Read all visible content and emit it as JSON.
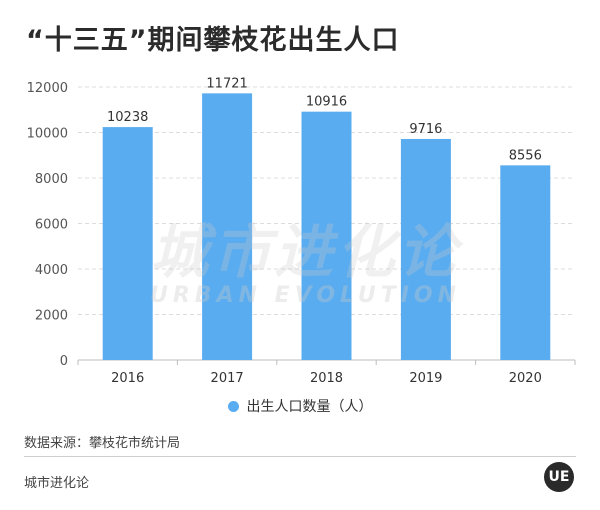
{
  "title": "“十三五”期间攀枝花出生人口",
  "legend_label": "出生人口数量（人）",
  "source": "数据来源：攀枝花市统计局",
  "brand": "城市进化论",
  "logo_text": "UE",
  "watermark": {
    "cn": "城市进化论",
    "en": "URBAN EVOLUTION"
  },
  "colors": {
    "bar": "#5aacf0",
    "grid": "#dcdcdc",
    "axis": "#bdbdbd"
  },
  "chart_data": {
    "type": "bar",
    "title": "“十三五”期间攀枝花出生人口",
    "categories": [
      "2016",
      "2017",
      "2018",
      "2019",
      "2020"
    ],
    "series": [
      {
        "name": "出生人口数量（人）",
        "values": [
          10238,
          11721,
          10916,
          9716,
          8556
        ]
      }
    ],
    "ylim": [
      0,
      12000
    ],
    "yticks": [
      0,
      2000,
      4000,
      6000,
      8000,
      10000,
      12000
    ],
    "grid": true,
    "legend": "bottom"
  }
}
